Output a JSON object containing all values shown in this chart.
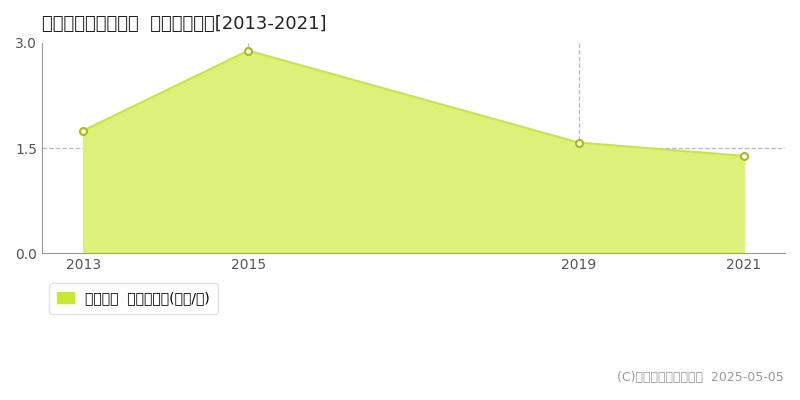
{
  "title": "下閑伊郡岩泉町中島  土地価格推移[2013-2021]",
  "years": [
    2013,
    2015,
    2019,
    2021
  ],
  "values": [
    1.75,
    2.89,
    1.58,
    1.39
  ],
  "line_color": "#c8e832",
  "fill_color": "#ddf07a",
  "marker_color": "#ffffff",
  "marker_edge_color": "#aabb10",
  "ylim": [
    0,
    3.0
  ],
  "yticks": [
    0,
    1.5,
    3
  ],
  "xticks": [
    2013,
    2015,
    2019,
    2021
  ],
  "vline_years": [
    2015,
    2019
  ],
  "vline_color": "#bbbbbb",
  "hline_value": 1.5,
  "hline_color": "#bbbbbb",
  "bg_color": "#ffffff",
  "legend_label": "土地価格  平均嵪単価(万円/嵪)",
  "legend_marker_color": "#c8e832",
  "copyright_text": "(C)土地価格ドットコム  2025-05-05",
  "title_fontsize": 13,
  "tick_fontsize": 10,
  "legend_fontsize": 10,
  "copyright_fontsize": 9,
  "xlim_left": 2012.5,
  "xlim_right": 2021.5
}
